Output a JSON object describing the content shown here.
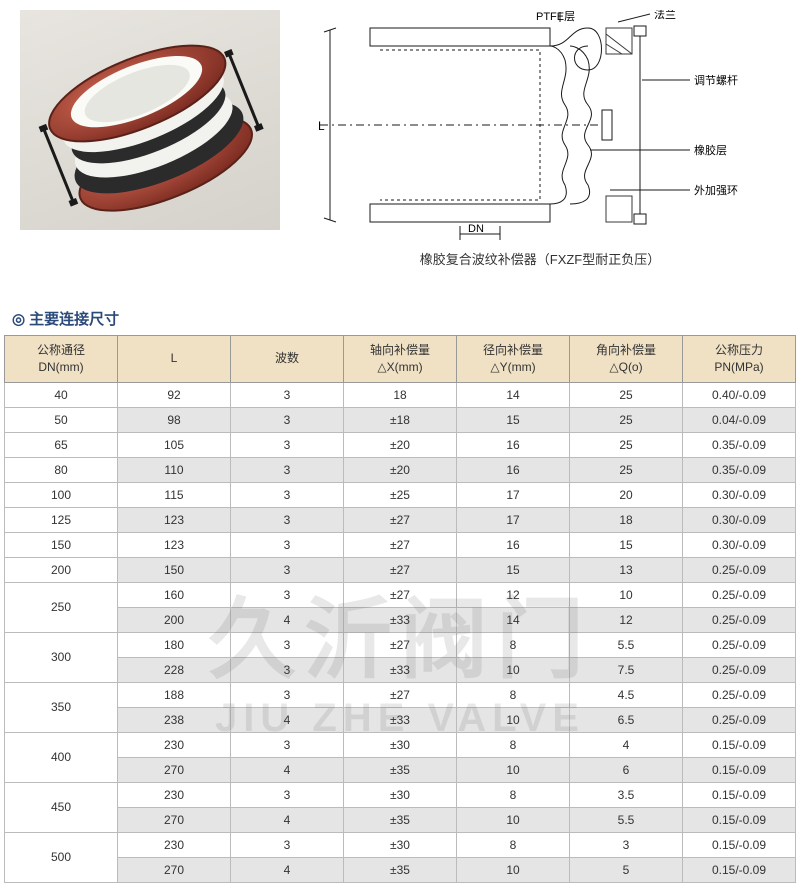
{
  "diagram": {
    "labels": {
      "ptfe": "PTFE层",
      "flange": "法兰",
      "tierod": "调节螺杆",
      "rubber": "橡胶层",
      "ring": "外加强环",
      "L": "L",
      "DN": "DN"
    },
    "photo_colors": {
      "flange": "#a53a2e",
      "bellows_dark": "#2b2b2b",
      "bellows_light": "#f5f5f2",
      "rod": "#2b2b2b"
    },
    "line_color": "#1a1a1a",
    "hatch_color": "#3a3a3a",
    "caption": "橡胶复合波纹补偿器（FXZF型耐正负压）"
  },
  "section_title": "主要连接尺寸",
  "watermark": {
    "cn": "久沂阀门",
    "en": "JIU ZHE VALVE"
  },
  "logo_colors": {
    "blue": "#1e4fa3",
    "green": "#c7d94a"
  },
  "table": {
    "columns": [
      {
        "line1": "公称通径",
        "line2": "DN(mm)"
      },
      {
        "line1": "L",
        "line2": ""
      },
      {
        "line1": "波数",
        "line2": ""
      },
      {
        "line1": "轴向补偿量",
        "line2": "△X(mm)"
      },
      {
        "line1": "径向补偿量",
        "line2": "△Y(mm)"
      },
      {
        "line1": "角向补偿量",
        "line2": "△Q(o)"
      },
      {
        "line1": "公称压力",
        "line2": "PN(MPa)"
      }
    ],
    "rows": [
      {
        "dn": "40",
        "span": 1,
        "cells": [
          "92",
          "3",
          "18",
          "14",
          "25",
          "0.40/-0.09"
        ]
      },
      {
        "dn": "50",
        "span": 1,
        "cells": [
          "98",
          "3",
          "±18",
          "15",
          "25",
          "0.04/-0.09"
        ]
      },
      {
        "dn": "65",
        "span": 1,
        "cells": [
          "105",
          "3",
          "±20",
          "16",
          "25",
          "0.35/-0.09"
        ]
      },
      {
        "dn": "80",
        "span": 1,
        "cells": [
          "110",
          "3",
          "±20",
          "16",
          "25",
          "0.35/-0.09"
        ]
      },
      {
        "dn": "100",
        "span": 1,
        "cells": [
          "115",
          "3",
          "±25",
          "17",
          "20",
          "0.30/-0.09"
        ]
      },
      {
        "dn": "125",
        "span": 1,
        "cells": [
          "123",
          "3",
          "±27",
          "17",
          "18",
          "0.30/-0.09"
        ]
      },
      {
        "dn": "150",
        "span": 1,
        "cells": [
          "123",
          "3",
          "±27",
          "16",
          "15",
          "0.30/-0.09"
        ]
      },
      {
        "dn": "200",
        "span": 1,
        "cells": [
          "150",
          "3",
          "±27",
          "15",
          "13",
          "0.25/-0.09"
        ]
      },
      {
        "dn": "250",
        "span": 2,
        "cells": [
          "160",
          "3",
          "±27",
          "12",
          "10",
          "0.25/-0.09"
        ]
      },
      {
        "dn": "",
        "span": 0,
        "cells": [
          "200",
          "4",
          "±33",
          "14",
          "12",
          "0.25/-0.09"
        ]
      },
      {
        "dn": "300",
        "span": 2,
        "cells": [
          "180",
          "3",
          "±27",
          "8",
          "5.5",
          "0.25/-0.09"
        ]
      },
      {
        "dn": "",
        "span": 0,
        "cells": [
          "228",
          "3",
          "±33",
          "10",
          "7.5",
          "0.25/-0.09"
        ]
      },
      {
        "dn": "350",
        "span": 2,
        "cells": [
          "188",
          "3",
          "±27",
          "8",
          "4.5",
          "0.25/-0.09"
        ]
      },
      {
        "dn": "",
        "span": 0,
        "cells": [
          "238",
          "4",
          "±33",
          "10",
          "6.5",
          "0.25/-0.09"
        ]
      },
      {
        "dn": "400",
        "span": 2,
        "cells": [
          "230",
          "3",
          "±30",
          "8",
          "4",
          "0.15/-0.09"
        ]
      },
      {
        "dn": "",
        "span": 0,
        "cells": [
          "270",
          "4",
          "±35",
          "10",
          "6",
          "0.15/-0.09"
        ]
      },
      {
        "dn": "450",
        "span": 2,
        "cells": [
          "230",
          "3",
          "±30",
          "8",
          "3.5",
          "0.15/-0.09"
        ]
      },
      {
        "dn": "",
        "span": 0,
        "cells": [
          "270",
          "4",
          "±35",
          "10",
          "5.5",
          "0.15/-0.09"
        ]
      },
      {
        "dn": "500",
        "span": 2,
        "cells": [
          "230",
          "3",
          "±30",
          "8",
          "3",
          "0.15/-0.09"
        ]
      },
      {
        "dn": "",
        "span": 0,
        "cells": [
          "270",
          "4",
          "±35",
          "10",
          "5",
          "0.15/-0.09"
        ]
      }
    ]
  }
}
